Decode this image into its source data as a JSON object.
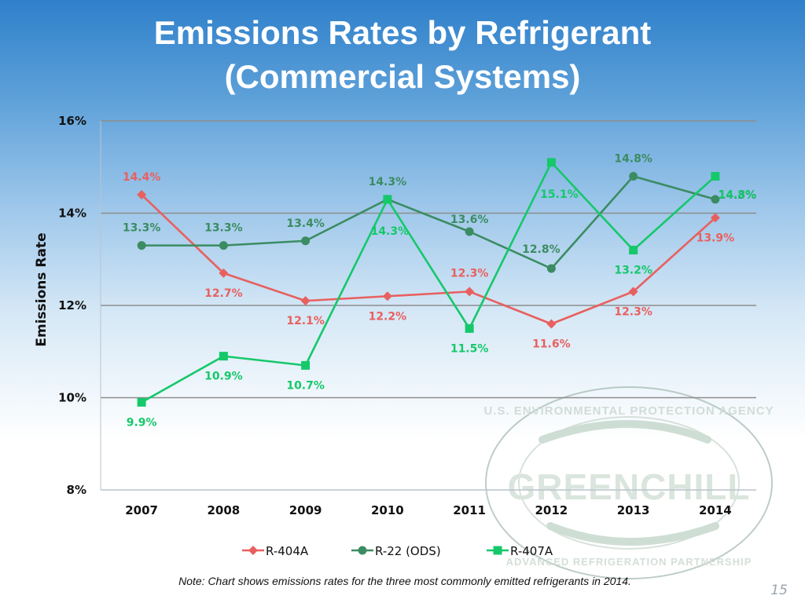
{
  "title_line1": "Emissions Rates by Refrigerant",
  "title_line2": "(Commercial Systems)",
  "note": "Note: Chart shows emissions rates for the three most commonly emitted refrigerants in 2014.",
  "page_number": "15",
  "watermark": {
    "text": "GREENCHILL",
    "ring_text_top": "U.S. ENVIRONMENTAL PROTECTION AGENCY",
    "ring_text_bottom": "ADVANCED REFRIGERATION PARTNERSHIP"
  },
  "chart_data": {
    "type": "line",
    "categories": [
      "2007",
      "2008",
      "2009",
      "2010",
      "2011",
      "2012",
      "2013",
      "2014"
    ],
    "ylabel": "Emissions Rate",
    "ylim": [
      8,
      16
    ],
    "yticks": [
      8,
      10,
      12,
      14,
      16
    ],
    "ytick_labels": [
      "8%",
      "10%",
      "12%",
      "14%",
      "16%"
    ],
    "grid": true,
    "legend_position": "bottom",
    "series": [
      {
        "name": "R-404A",
        "color": "#e8605f",
        "marker": "diamond",
        "values": [
          14.4,
          12.7,
          12.1,
          12.2,
          12.3,
          11.6,
          12.3,
          13.9
        ],
        "labels": [
          "14.4%",
          "12.7%",
          "12.1%",
          "12.2%",
          "12.3%",
          "11.6%",
          "12.3%",
          "13.9%"
        ]
      },
      {
        "name": "R-22 (ODS)",
        "color": "#3b8c62",
        "marker": "circle",
        "values": [
          13.3,
          13.3,
          13.4,
          14.3,
          13.6,
          12.8,
          14.8,
          14.3
        ],
        "labels": [
          "13.3%",
          "13.3%",
          "13.4%",
          "14.3%",
          "13.6%",
          "12.8%",
          "14.8%",
          "14.3%"
        ]
      },
      {
        "name": "R-407A",
        "color": "#15c86a",
        "marker": "square",
        "values": [
          9.9,
          10.9,
          10.7,
          14.3,
          11.5,
          15.1,
          13.2,
          14.8
        ],
        "labels": [
          "9.9%",
          "10.9%",
          "10.7%",
          "14.3%",
          "11.5%",
          "15.1%",
          "13.2%",
          "14.8%"
        ]
      }
    ]
  }
}
